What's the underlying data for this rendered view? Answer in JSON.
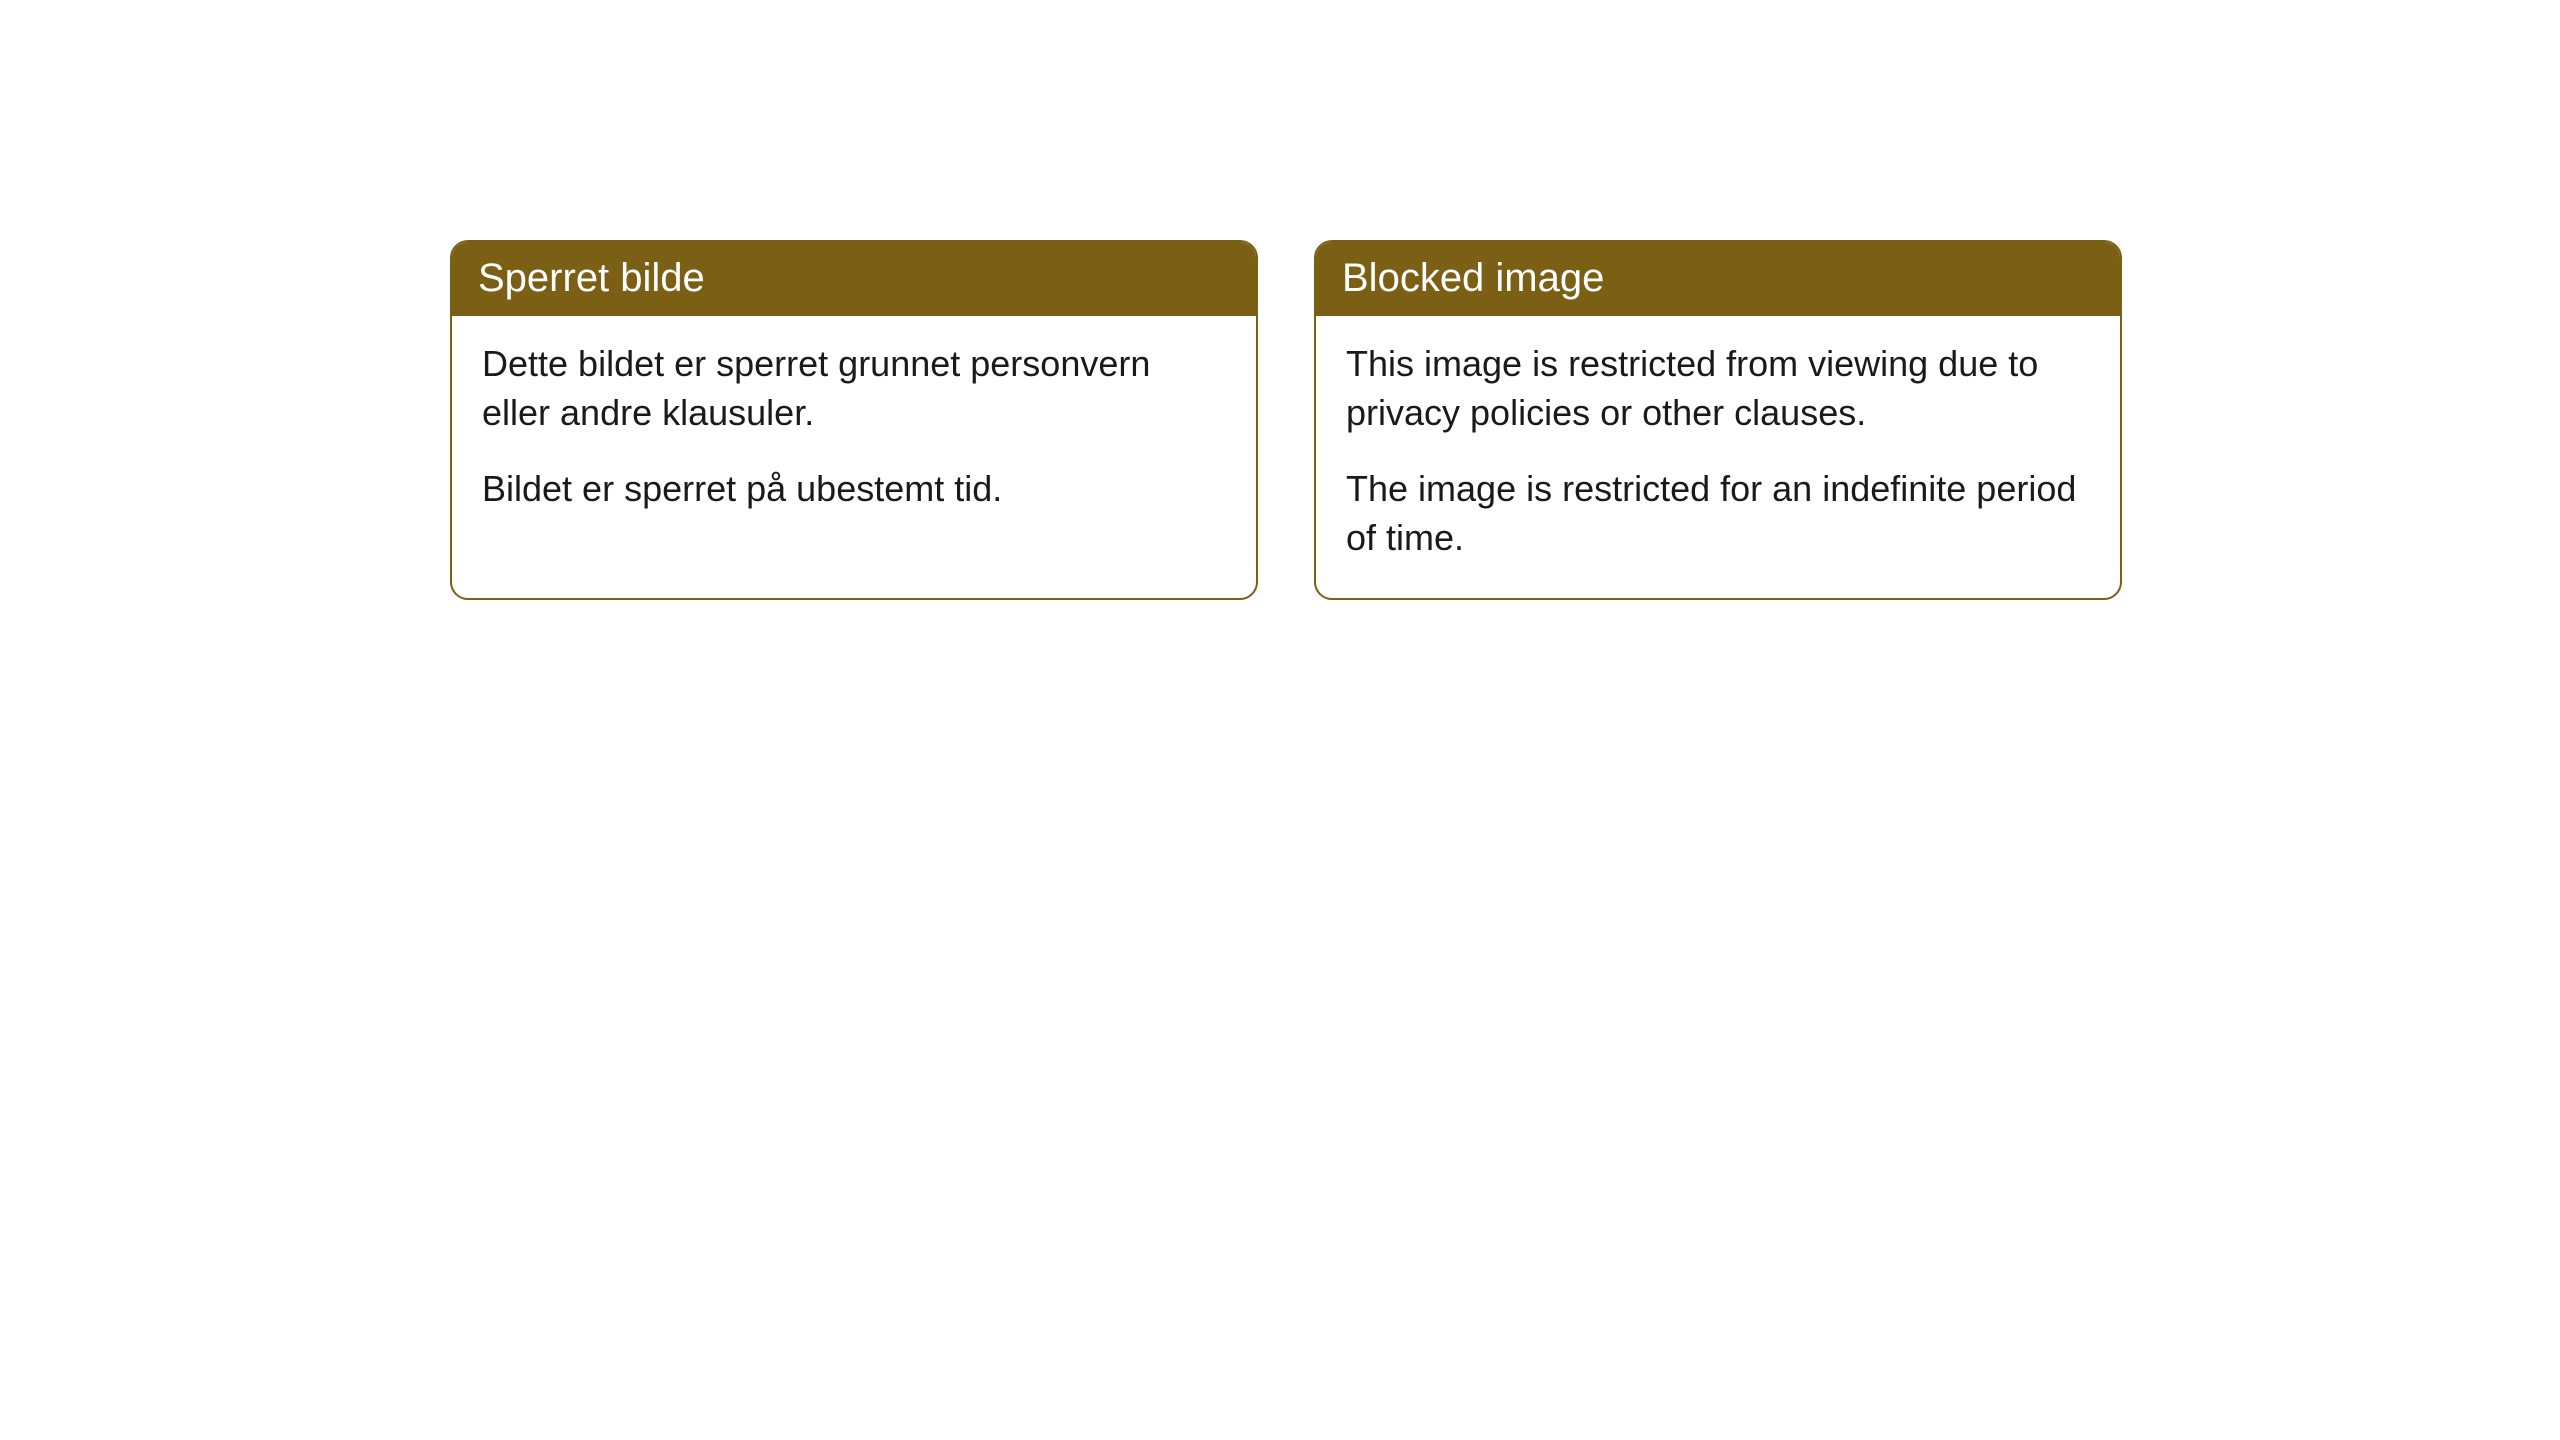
{
  "cards": [
    {
      "title": "Sperret bilde",
      "text1": "Dette bildet er sperret grunnet personvern eller andre klausuler.",
      "text2": "Bildet er sperret på ubestemt tid."
    },
    {
      "title": "Blocked image",
      "text1": "This image is restricted from viewing due to privacy policies or other clauses.",
      "text2": "The image is restricted for an indefinite period of time."
    }
  ],
  "style": {
    "header_bg": "#7a5f14",
    "header_text_color": "#ffffff",
    "border_color": "#7a5f14",
    "body_bg": "#ffffff",
    "body_text_color": "#1a1a1a",
    "border_radius": 18,
    "header_fontsize": 40,
    "body_fontsize": 36
  }
}
